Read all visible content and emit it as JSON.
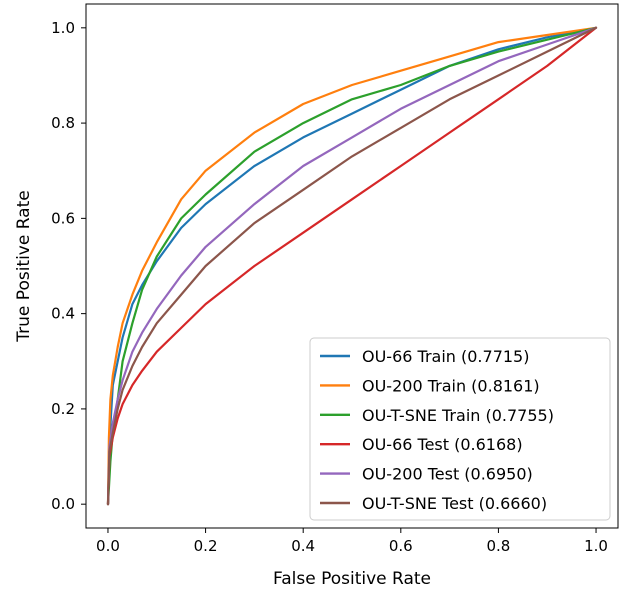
{
  "chart_data": {
    "type": "line",
    "title": "",
    "xlabel": "False Positive Rate",
    "ylabel": "True Positive Rate",
    "xlim": [
      0.0,
      1.0
    ],
    "ylim": [
      0.0,
      1.0
    ],
    "xticks": [
      "0.0",
      "0.2",
      "0.4",
      "0.6",
      "0.8",
      "1.0"
    ],
    "yticks": [
      "0.0",
      "0.2",
      "0.4",
      "0.6",
      "0.8",
      "1.0"
    ],
    "grid": false,
    "legend_position": "lower-right",
    "series": [
      {
        "name": "OU-66 Train (0.7715)",
        "color": "#1f77b4",
        "x": [
          0,
          0.003,
          0.01,
          0.02,
          0.03,
          0.05,
          0.07,
          0.1,
          0.15,
          0.2,
          0.3,
          0.4,
          0.5,
          0.6,
          0.7,
          0.8,
          0.9,
          1.0
        ],
        "y": [
          0,
          0.13,
          0.25,
          0.3,
          0.35,
          0.42,
          0.46,
          0.51,
          0.58,
          0.63,
          0.71,
          0.77,
          0.82,
          0.87,
          0.92,
          0.955,
          0.98,
          1.0
        ]
      },
      {
        "name": "OU-200 Train (0.8161)",
        "color": "#ff7f0e",
        "x": [
          0,
          0.002,
          0.005,
          0.01,
          0.02,
          0.03,
          0.05,
          0.07,
          0.1,
          0.15,
          0.2,
          0.3,
          0.4,
          0.5,
          0.6,
          0.7,
          0.8,
          0.9,
          1.0
        ],
        "y": [
          0,
          0.14,
          0.22,
          0.27,
          0.33,
          0.38,
          0.44,
          0.49,
          0.55,
          0.64,
          0.7,
          0.78,
          0.84,
          0.88,
          0.91,
          0.94,
          0.97,
          0.985,
          1.0
        ]
      },
      {
        "name": "OU-T-SNE Train (0.7755)",
        "color": "#2ca02c",
        "x": [
          0,
          0.005,
          0.01,
          0.02,
          0.03,
          0.05,
          0.07,
          0.1,
          0.15,
          0.2,
          0.3,
          0.4,
          0.5,
          0.6,
          0.7,
          0.8,
          0.9,
          1.0
        ],
        "y": [
          0,
          0.09,
          0.15,
          0.22,
          0.3,
          0.38,
          0.45,
          0.52,
          0.6,
          0.65,
          0.74,
          0.8,
          0.85,
          0.88,
          0.92,
          0.95,
          0.975,
          1.0
        ]
      },
      {
        "name": "OU-66 Test (0.6168)",
        "color": "#d62728",
        "x": [
          0,
          0.003,
          0.01,
          0.02,
          0.03,
          0.05,
          0.07,
          0.1,
          0.15,
          0.2,
          0.3,
          0.4,
          0.5,
          0.6,
          0.7,
          0.8,
          0.9,
          1.0
        ],
        "y": [
          0,
          0.1,
          0.14,
          0.18,
          0.21,
          0.25,
          0.28,
          0.32,
          0.37,
          0.42,
          0.5,
          0.57,
          0.64,
          0.71,
          0.78,
          0.85,
          0.92,
          1.0
        ]
      },
      {
        "name": "OU-200 Test (0.6950)",
        "color": "#9467bd",
        "x": [
          0,
          0.003,
          0.01,
          0.02,
          0.03,
          0.05,
          0.07,
          0.1,
          0.15,
          0.2,
          0.3,
          0.4,
          0.5,
          0.6,
          0.7,
          0.8,
          0.9,
          1.0
        ],
        "y": [
          0,
          0.12,
          0.17,
          0.22,
          0.26,
          0.32,
          0.36,
          0.41,
          0.48,
          0.54,
          0.63,
          0.71,
          0.77,
          0.83,
          0.88,
          0.93,
          0.965,
          1.0
        ]
      },
      {
        "name": "OU-T-SNE Test (0.6660)",
        "color": "#8c564b",
        "x": [
          0,
          0.003,
          0.01,
          0.02,
          0.03,
          0.05,
          0.07,
          0.1,
          0.15,
          0.2,
          0.3,
          0.4,
          0.5,
          0.6,
          0.7,
          0.8,
          0.9,
          1.0
        ],
        "y": [
          0,
          0.11,
          0.15,
          0.2,
          0.24,
          0.29,
          0.33,
          0.38,
          0.44,
          0.5,
          0.59,
          0.66,
          0.73,
          0.79,
          0.85,
          0.9,
          0.95,
          1.0
        ]
      }
    ]
  }
}
